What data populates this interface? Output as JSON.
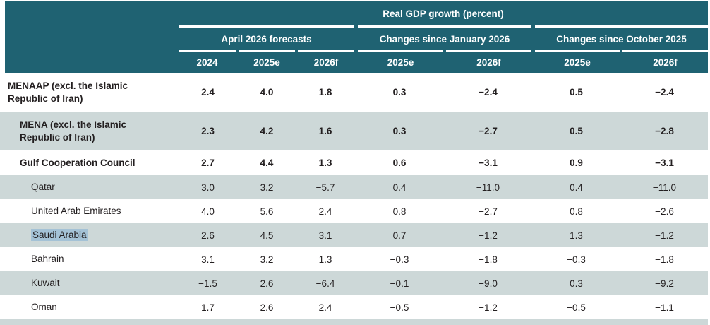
{
  "table": {
    "title": "Real GDP growth (percent)",
    "groups": [
      {
        "label": "April 2026 forecasts",
        "columns": [
          "2024",
          "2025e",
          "2026f"
        ]
      },
      {
        "label": "Changes since January 2026",
        "columns": [
          "2025e",
          "2026f"
        ]
      },
      {
        "label": "Changes since October 2025",
        "columns": [
          "2025e",
          "2026f"
        ]
      }
    ],
    "rows": [
      {
        "label": "MENAAP (excl. the Islamic Republic of Iran)",
        "indent": 0,
        "bold": true,
        "highlighted": false,
        "values": [
          "2.4",
          "4.0",
          "1.8",
          "0.3",
          "−2.4",
          "0.5",
          "−2.4"
        ]
      },
      {
        "label": "MENA (excl. the Islamic Republic of Iran)",
        "indent": 1,
        "bold": true,
        "highlighted": false,
        "values": [
          "2.3",
          "4.2",
          "1.6",
          "0.3",
          "−2.7",
          "0.5",
          "−2.8"
        ]
      },
      {
        "label": "Gulf Cooperation Council",
        "indent": 1,
        "bold": true,
        "highlighted": false,
        "values": [
          "2.7",
          "4.4",
          "1.3",
          "0.6",
          "−3.1",
          "0.9",
          "−3.1"
        ]
      },
      {
        "label": "Qatar",
        "indent": 2,
        "bold": false,
        "highlighted": false,
        "values": [
          "3.0",
          "3.2",
          "−5.7",
          "0.4",
          "−11.0",
          "0.4",
          "−11.0"
        ]
      },
      {
        "label": "United Arab Emirates",
        "indent": 2,
        "bold": false,
        "highlighted": false,
        "values": [
          "4.0",
          "5.6",
          "2.4",
          "0.8",
          "−2.7",
          "0.8",
          "−2.6"
        ]
      },
      {
        "label": "Saudi Arabia",
        "indent": 2,
        "bold": false,
        "highlighted": true,
        "values": [
          "2.6",
          "4.5",
          "3.1",
          "0.7",
          "−1.2",
          "1.3",
          "−1.2"
        ]
      },
      {
        "label": "Bahrain",
        "indent": 2,
        "bold": false,
        "highlighted": false,
        "values": [
          "3.1",
          "3.2",
          "1.3",
          "−0.3",
          "−1.8",
          "−0.3",
          "−1.8"
        ]
      },
      {
        "label": "Kuwait",
        "indent": 2,
        "bold": false,
        "highlighted": false,
        "values": [
          "−1.5",
          "2.6",
          "−6.4",
          "−0.1",
          "−9.0",
          "0.3",
          "−9.2"
        ]
      },
      {
        "label": "Oman",
        "indent": 2,
        "bold": false,
        "highlighted": false,
        "values": [
          "1.7",
          "2.6",
          "2.4",
          "−0.5",
          "−1.2",
          "−0.5",
          "−1.1"
        ]
      }
    ],
    "colors": {
      "header_teal": "#1f6272",
      "stripe_gray": "#cdd8d8",
      "text": "#231f20",
      "selection_highlight": "#a4c2d6"
    }
  },
  "chart_data": {
    "type": "table",
    "title": "Real GDP growth (percent)",
    "column_groups": [
      "April 2026 forecasts",
      "Changes since January 2026",
      "Changes since October 2025"
    ],
    "columns": [
      "2024",
      "2025e",
      "2026f",
      "2025e",
      "2026f",
      "2025e",
      "2026f"
    ],
    "rows": [
      {
        "name": "MENAAP (excl. the Islamic Republic of Iran)",
        "values": [
          2.4,
          4.0,
          1.8,
          0.3,
          -2.4,
          0.5,
          -2.4
        ]
      },
      {
        "name": "MENA (excl. the Islamic Republic of Iran)",
        "values": [
          2.3,
          4.2,
          1.6,
          0.3,
          -2.7,
          0.5,
          -2.8
        ]
      },
      {
        "name": "Gulf Cooperation Council",
        "values": [
          2.7,
          4.4,
          1.3,
          0.6,
          -3.1,
          0.9,
          -3.1
        ]
      },
      {
        "name": "Qatar",
        "values": [
          3.0,
          3.2,
          -5.7,
          0.4,
          -11.0,
          0.4,
          -11.0
        ]
      },
      {
        "name": "United Arab Emirates",
        "values": [
          4.0,
          5.6,
          2.4,
          0.8,
          -2.7,
          0.8,
          -2.6
        ]
      },
      {
        "name": "Saudi Arabia",
        "values": [
          2.6,
          4.5,
          3.1,
          0.7,
          -1.2,
          1.3,
          -1.2
        ]
      },
      {
        "name": "Bahrain",
        "values": [
          3.1,
          3.2,
          1.3,
          -0.3,
          -1.8,
          -0.3,
          -1.8
        ]
      },
      {
        "name": "Kuwait",
        "values": [
          -1.5,
          2.6,
          -6.4,
          -0.1,
          -9.0,
          0.3,
          -9.2
        ]
      },
      {
        "name": "Oman",
        "values": [
          1.7,
          2.6,
          2.4,
          -0.5,
          -1.2,
          -0.5,
          -1.1
        ]
      }
    ]
  }
}
